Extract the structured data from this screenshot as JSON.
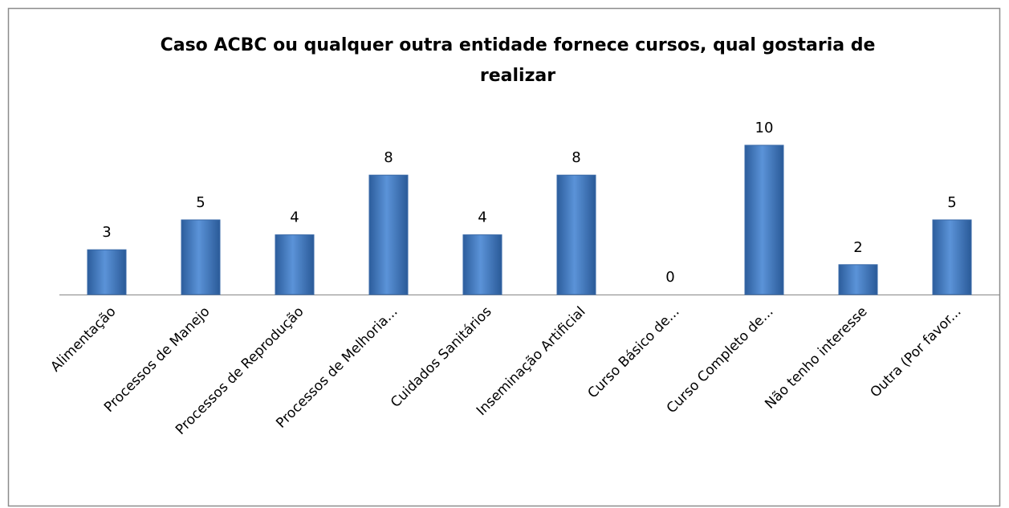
{
  "chart_data": {
    "type": "bar",
    "title": "Caso ACBC ou qualquer outra entidade fornece cursos, qual gostaria de realizar",
    "categories": [
      "Alimentação",
      "Processos de Manejo",
      "Processos de Reprodução",
      "Processos de Melhoria...",
      "Cuidados Sanitários",
      "Inseminação Artificial",
      "Curso Básico de...",
      "Curso Completo de...",
      "Não tenho interesse",
      "Outra (Por favor..."
    ],
    "values": [
      3,
      5,
      4,
      8,
      4,
      8,
      0,
      10,
      2,
      5
    ],
    "color": "#4a7ebb"
  }
}
